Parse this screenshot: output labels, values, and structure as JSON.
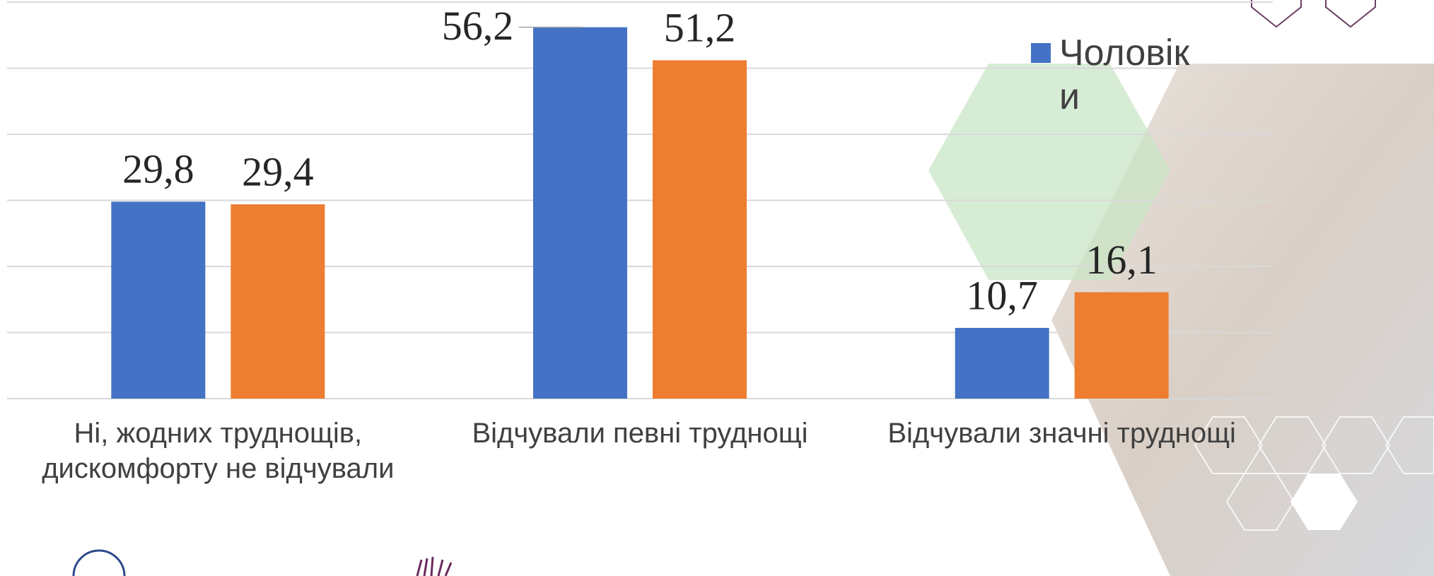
{
  "chart_data": {
    "type": "bar",
    "categories": [
      "Ні, жодних труднощів, дискомфорту не відчували",
      "Відчували певні труднощі",
      "Відчували значні труднощі"
    ],
    "series": [
      {
        "name": "Чоловіки",
        "color": "#4472c4",
        "values": [
          29.8,
          56.2,
          10.7
        ],
        "value_labels": [
          "29,8",
          "56,2",
          "10,7"
        ]
      },
      {
        "color": "#ed7d31",
        "values": [
          29.4,
          51.2,
          16.1
        ],
        "value_labels": [
          "29,4",
          "51,2",
          "16,1"
        ]
      }
    ],
    "ylim": [
      0,
      60
    ],
    "yticks": [
      0,
      10,
      20,
      30,
      40,
      50,
      60
    ],
    "grid": true
  }
}
